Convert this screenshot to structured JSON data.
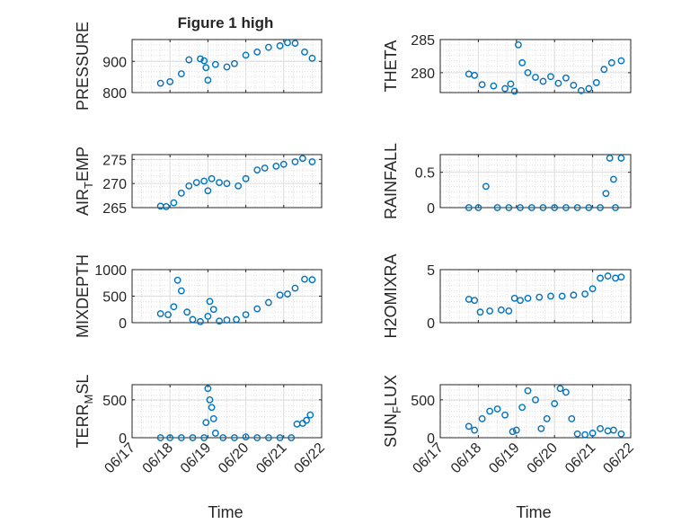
{
  "figure": {
    "title": "Figure 1 high",
    "xlabel": "Time",
    "x_ticks": [
      "06/17",
      "06/18",
      "06/19",
      "06/20",
      "06/21",
      "06/22"
    ],
    "marker_color": "#0072BD",
    "marker": "open-circle"
  },
  "chart_data": [
    {
      "type": "scatter",
      "id": "pressure",
      "ylabel": "PRESSURE",
      "title": "Figure 1 high",
      "ylim": [
        800,
        970
      ],
      "yticks": [
        800,
        900
      ],
      "x": [
        17.75,
        18.0,
        18.3,
        18.5,
        18.8,
        18.9,
        18.95,
        19.0,
        19.2,
        19.5,
        19.7,
        20.0,
        20.3,
        20.6,
        20.9,
        21.1,
        21.3,
        21.55,
        21.75
      ],
      "y": [
        830,
        835,
        860,
        905,
        908,
        902,
        880,
        840,
        890,
        882,
        893,
        920,
        930,
        945,
        950,
        960,
        958,
        930,
        910
      ]
    },
    {
      "type": "scatter",
      "id": "theta",
      "ylabel": "THETA",
      "ylim": [
        277,
        285
      ],
      "yticks": [
        280,
        285
      ],
      "x": [
        17.75,
        17.9,
        18.1,
        18.4,
        18.7,
        18.85,
        18.95,
        19.05,
        19.15,
        19.3,
        19.5,
        19.7,
        19.9,
        20.1,
        20.3,
        20.5,
        20.7,
        20.9,
        21.1,
        21.3,
        21.5,
        21.75
      ],
      "y": [
        279.8,
        279.6,
        278.2,
        278.0,
        277.6,
        278.3,
        277.2,
        284.2,
        281.5,
        280.0,
        279.3,
        278.7,
        279.4,
        278.4,
        279.2,
        278.1,
        277.3,
        277.6,
        278.5,
        280.5,
        281.5,
        281.8
      ]
    },
    {
      "type": "scatter",
      "id": "air_temp",
      "ylabel": "AIR_TEMP",
      "ylabel_main": "AIR",
      "ylabel_sub": "T",
      "ylabel_rest": "EMP",
      "ylim": [
        265,
        276
      ],
      "yticks": [
        265,
        270,
        275
      ],
      "x": [
        17.75,
        17.9,
        18.1,
        18.3,
        18.5,
        18.7,
        18.9,
        19.0,
        19.1,
        19.3,
        19.5,
        19.8,
        20.0,
        20.3,
        20.5,
        20.8,
        21.0,
        21.3,
        21.5,
        21.75
      ],
      "y": [
        265.3,
        265.2,
        266.0,
        268.0,
        269.5,
        270.2,
        270.5,
        268.5,
        271.0,
        270.2,
        270.0,
        269.5,
        271.0,
        272.8,
        273.2,
        273.6,
        274.0,
        274.5,
        275.2,
        274.5
      ]
    },
    {
      "type": "scatter",
      "id": "rainfall",
      "ylabel": "RAINFALL",
      "ylim": [
        0,
        0.75
      ],
      "yticks": [
        0,
        0.5
      ],
      "x": [
        17.75,
        18.0,
        18.2,
        18.5,
        18.8,
        19.1,
        19.4,
        19.7,
        20.0,
        20.3,
        20.6,
        20.9,
        21.2,
        21.35,
        21.45,
        21.55,
        21.6,
        21.75
      ],
      "y": [
        0,
        0,
        0.3,
        0,
        0,
        0,
        0,
        0,
        0,
        0,
        0,
        0,
        0,
        0.2,
        0.7,
        0.4,
        0,
        0.7
      ]
    },
    {
      "type": "scatter",
      "id": "mixdepth",
      "ylabel": "MIXDEPTH",
      "ylim": [
        0,
        1000
      ],
      "yticks": [
        0,
        500,
        1000
      ],
      "x": [
        17.75,
        17.95,
        18.1,
        18.2,
        18.3,
        18.45,
        18.6,
        18.8,
        19.0,
        19.05,
        19.15,
        19.3,
        19.5,
        19.75,
        20.0,
        20.3,
        20.6,
        20.9,
        21.1,
        21.3,
        21.55,
        21.75
      ],
      "y": [
        170,
        150,
        300,
        800,
        600,
        200,
        60,
        20,
        120,
        400,
        250,
        30,
        50,
        60,
        150,
        260,
        380,
        520,
        540,
        650,
        820,
        810
      ]
    },
    {
      "type": "scatter",
      "id": "h2omixra",
      "ylabel": "H2OMIXRA",
      "ylim": [
        0,
        5
      ],
      "yticks": [
        0,
        5
      ],
      "x": [
        17.75,
        17.9,
        18.05,
        18.3,
        18.6,
        18.8,
        18.95,
        19.1,
        19.3,
        19.6,
        19.9,
        20.2,
        20.5,
        20.8,
        21.0,
        21.2,
        21.4,
        21.6,
        21.75
      ],
      "y": [
        2.2,
        2.1,
        1.0,
        1.1,
        1.2,
        1.1,
        2.3,
        2.1,
        2.3,
        2.4,
        2.5,
        2.5,
        2.6,
        2.7,
        3.2,
        4.2,
        4.4,
        4.2,
        4.3
      ]
    },
    {
      "type": "scatter",
      "id": "terr_msl",
      "ylabel": "TERR_MSL",
      "ylabel_main": "TERR",
      "ylabel_sub": "M",
      "ylabel_rest": "SL",
      "ylim": [
        0,
        700
      ],
      "yticks": [
        0,
        500
      ],
      "x": [
        17.75,
        18.0,
        18.3,
        18.6,
        18.9,
        18.95,
        19.0,
        19.05,
        19.1,
        19.15,
        19.2,
        19.4,
        19.7,
        20.0,
        20.3,
        20.6,
        20.9,
        21.2,
        21.35,
        21.5,
        21.6,
        21.7
      ],
      "y": [
        0,
        0,
        0,
        0,
        0,
        200,
        650,
        500,
        400,
        250,
        60,
        0,
        0,
        10,
        0,
        0,
        0,
        0,
        180,
        190,
        230,
        300
      ]
    },
    {
      "type": "scatter",
      "id": "sun_flux",
      "ylabel": "SUN_FLUX",
      "ylabel_main": "SUN",
      "ylabel_sub": "F",
      "ylabel_rest": "LUX",
      "ylim": [
        0,
        700
      ],
      "yticks": [
        0,
        500
      ],
      "x": [
        17.75,
        17.9,
        18.1,
        18.3,
        18.5,
        18.7,
        18.9,
        19.0,
        19.15,
        19.3,
        19.5,
        19.65,
        19.8,
        20.0,
        20.15,
        20.3,
        20.45,
        20.6,
        20.8,
        21.0,
        21.2,
        21.4,
        21.55,
        21.75
      ],
      "y": [
        150,
        100,
        250,
        350,
        380,
        300,
        80,
        100,
        400,
        620,
        500,
        120,
        250,
        450,
        650,
        600,
        250,
        50,
        40,
        60,
        120,
        90,
        100,
        50
      ]
    }
  ]
}
